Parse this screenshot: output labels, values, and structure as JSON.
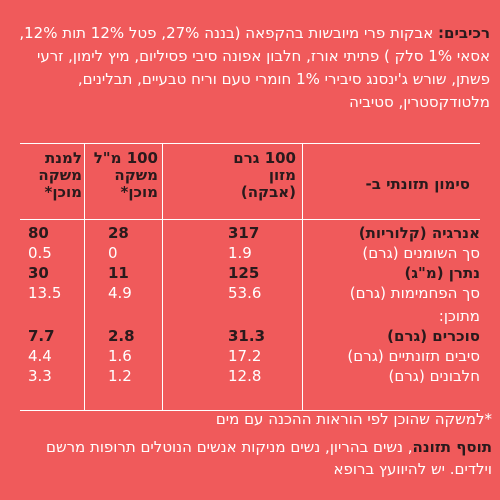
{
  "ingredients": {
    "label": "רכיבים:",
    "text": "אבקות פרי מיובשות בהקפאה (בננה 27%, פטל 12% תות 12%, אסאי 1% סלק ) פתיתי אורז, חלבון אפונה סיבי פסיליום, מיץ לימון, זרעי פשתן, שורש ג'ינסנג סיבירי 1% חומרי טעם וריח טבעיים, תבלינים, מלטודקסטרין, סטיביה"
  },
  "table": {
    "headers": {
      "label": "סימון תזונתי ב-",
      "col1": "100 גרם מזון (אבקה)",
      "col2": "100 מ\"ל משקה מוכן*",
      "col3": "למנת משקה מוכן*"
    },
    "rows": [
      {
        "label": "אנרגיה (קלוריות)",
        "c1": "317",
        "c2": "28",
        "c3": "80",
        "bold": true
      },
      {
        "label": "סך השומנים (גרם)",
        "c1": "1.9",
        "c2": "0",
        "c3": "0.5",
        "bold": false
      },
      {
        "label": "נתרן (מ\"ג)",
        "c1": "125",
        "c2": "11",
        "c3": "30",
        "bold": true
      },
      {
        "label": "סך הפחמימות (גרם)",
        "c1": "53.6",
        "c2": "4.9",
        "c3": "13.5",
        "bold": false
      },
      {
        "label": "מתוכן:",
        "c1": "",
        "c2": "",
        "c3": "",
        "bold": false
      },
      {
        "label": "סוכרים (גרם)",
        "c1": "31.3",
        "c2": "2.8",
        "c3": "7.7",
        "bold": true
      },
      {
        "label": "סיבים תזונתיים (גרם)",
        "c1": "17.2",
        "c2": "1.6",
        "c3": "4.4",
        "bold": false
      },
      {
        "label": "חלבונים (גרם)",
        "c1": "12.8",
        "c2": "1.2",
        "c3": "3.3",
        "bold": false
      }
    ]
  },
  "footnote": "*למשקה שהוכן לפי הוראות ההכנה עם מים",
  "warning": {
    "label": "תוסף תזונה",
    "text": ", נשים בהריון, נשים מניקות אנשים הנוטלים תרופות מרשם וילדים. יש להיוועץ ברופא"
  }
}
